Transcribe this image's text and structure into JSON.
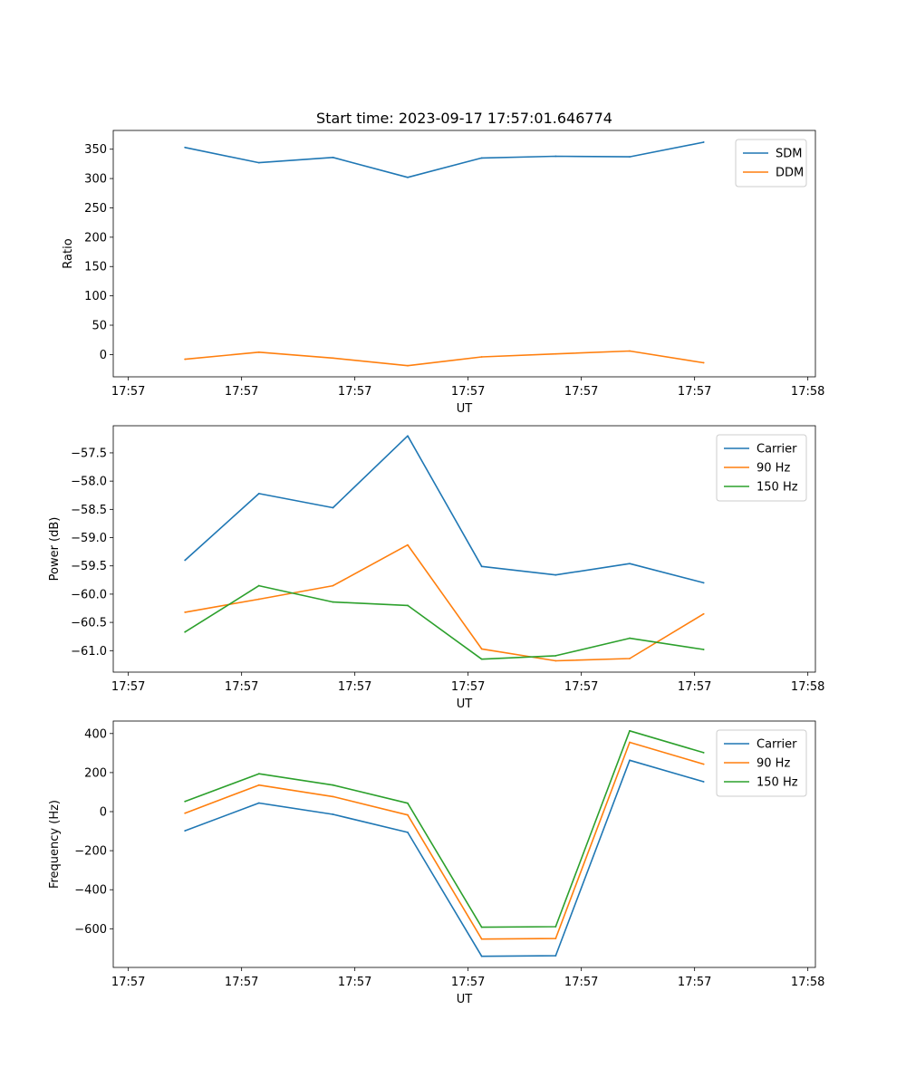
{
  "title": "Start time: 2023-09-17 17:57:01.646774",
  "colors": {
    "blue": "#1f77b4",
    "orange": "#ff7f0e",
    "green": "#2ca02c",
    "axis": "#000000",
    "legend_border": "#cccccc"
  },
  "chart_data": [
    {
      "type": "line",
      "title": "Start time: 2023-09-17 17:57:01.646774",
      "xlabel": "UT",
      "ylabel": "Ratio",
      "xlim": [
        -0.2,
        9.1
      ],
      "ylim": [
        -38,
        382
      ],
      "xticks": [
        0,
        1.5,
        3,
        4.5,
        6,
        7.5,
        9
      ],
      "xtick_labels": [
        "17:57",
        "17:57",
        "17:57",
        "17:57",
        "17:57",
        "17:57",
        "17:58"
      ],
      "yticks": [
        0,
        50,
        100,
        150,
        200,
        250,
        300,
        350
      ],
      "ytick_labels": [
        "0",
        "50",
        "100",
        "150",
        "200",
        "250",
        "300",
        "350"
      ],
      "legend": "upper right",
      "x": [
        0.75,
        1.73,
        2.71,
        3.7,
        4.68,
        5.66,
        6.64,
        7.62
      ],
      "series": [
        {
          "name": "SDM",
          "color": "#1f77b4",
          "values": [
            353,
            327,
            336,
            302,
            335,
            338,
            337,
            362
          ]
        },
        {
          "name": "DDM",
          "color": "#ff7f0e",
          "values": [
            -8,
            4,
            -6,
            -19,
            -4,
            1,
            6,
            -14
          ]
        }
      ]
    },
    {
      "type": "line",
      "title": "",
      "xlabel": "UT",
      "ylabel": "Power (dB)",
      "xlim": [
        -0.2,
        9.1
      ],
      "ylim": [
        -61.38,
        -57.02
      ],
      "xticks": [
        0,
        1.5,
        3,
        4.5,
        6,
        7.5,
        9
      ],
      "xtick_labels": [
        "17:57",
        "17:57",
        "17:57",
        "17:57",
        "17:57",
        "17:57",
        "17:58"
      ],
      "yticks": [
        -61.0,
        -60.5,
        -60.0,
        -59.5,
        -59.0,
        -58.5,
        -58.0,
        -57.5
      ],
      "ytick_labels": [
        "−61.0",
        "−60.5",
        "−60.0",
        "−59.5",
        "−59.0",
        "−58.5",
        "−58.0",
        "−57.5"
      ],
      "legend": "upper right",
      "x": [
        0.75,
        1.73,
        2.71,
        3.7,
        4.68,
        5.66,
        6.64,
        7.62
      ],
      "series": [
        {
          "name": "Carrier",
          "color": "#1f77b4",
          "values": [
            -59.4,
            -58.22,
            -58.47,
            -57.2,
            -59.51,
            -59.66,
            -59.46,
            -59.8
          ]
        },
        {
          "name": "90 Hz",
          "color": "#ff7f0e",
          "values": [
            -60.32,
            -60.09,
            -59.85,
            -59.13,
            -60.97,
            -61.18,
            -61.14,
            -60.35
          ]
        },
        {
          "name": "150 Hz",
          "color": "#2ca02c",
          "values": [
            -60.67,
            -59.85,
            -60.14,
            -60.2,
            -61.15,
            -61.09,
            -60.78,
            -60.98
          ]
        }
      ]
    },
    {
      "type": "line",
      "title": "",
      "xlabel": "UT",
      "ylabel": "Frequency (Hz)",
      "xlim": [
        -0.2,
        9.1
      ],
      "ylim": [
        -798,
        464
      ],
      "xticks": [
        0,
        1.5,
        3,
        4.5,
        6,
        7.5,
        9
      ],
      "xtick_labels": [
        "17:57",
        "17:57",
        "17:57",
        "17:57",
        "17:57",
        "17:57",
        "17:58"
      ],
      "yticks": [
        -600,
        -400,
        -200,
        0,
        200,
        400
      ],
      "ytick_labels": [
        "−600",
        "−400",
        "−200",
        "0",
        "200",
        "400"
      ],
      "legend": "upper right",
      "x": [
        0.75,
        1.73,
        2.71,
        3.7,
        4.68,
        5.66,
        6.64,
        7.62
      ],
      "series": [
        {
          "name": "Carrier",
          "color": "#1f77b4",
          "values": [
            -98,
            44,
            -14,
            -106,
            -741,
            -738,
            263,
            153
          ]
        },
        {
          "name": "90 Hz",
          "color": "#ff7f0e",
          "values": [
            -8,
            136,
            77,
            -17,
            -653,
            -650,
            355,
            243
          ]
        },
        {
          "name": "150 Hz",
          "color": "#2ca02c",
          "values": [
            52,
            194,
            136,
            43,
            -592,
            -589,
            414,
            302
          ]
        }
      ]
    }
  ]
}
